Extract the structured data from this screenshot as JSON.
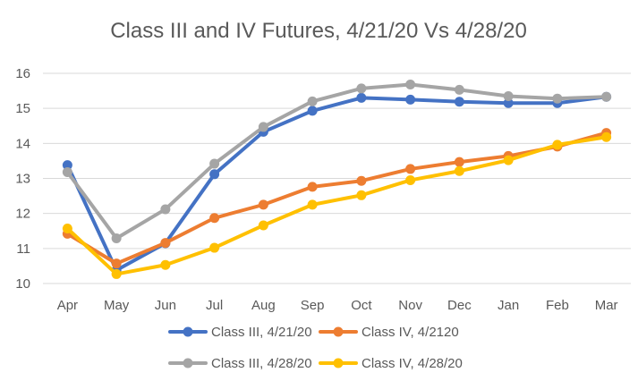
{
  "chart_data": {
    "type": "line",
    "title": "Class III and IV Futures, 4/21/20 Vs 4/28/20",
    "xlabel": "",
    "ylabel": "",
    "categories": [
      "Apr",
      "May",
      "Jun",
      "Jul",
      "Aug",
      "Sep",
      "Oct",
      "Nov",
      "Dec",
      "Jan",
      "Feb",
      "Mar"
    ],
    "ylim": [
      10,
      16
    ],
    "yticks": [
      "10",
      "11",
      "12",
      "13",
      "14",
      "15",
      "16"
    ],
    "grid": true,
    "legend_position": "bottom",
    "series": [
      {
        "name": "Class III, 4/21/20",
        "color": "#4472c4",
        "values": [
          13.38,
          10.38,
          11.15,
          13.12,
          14.33,
          14.93,
          15.3,
          15.25,
          15.19,
          15.15,
          15.15,
          15.33
        ]
      },
      {
        "name": "Class IV, 4/2120",
        "color": "#ed7d31",
        "values": [
          11.42,
          10.57,
          11.16,
          11.87,
          12.25,
          12.76,
          12.93,
          13.27,
          13.47,
          13.64,
          13.91,
          14.3
        ]
      },
      {
        "name": "Class III, 4/28/20",
        "color": "#a5a5a5",
        "values": [
          13.18,
          11.29,
          12.12,
          13.42,
          14.47,
          15.2,
          15.57,
          15.68,
          15.53,
          15.35,
          15.28,
          15.33
        ]
      },
      {
        "name": "Class IV, 4/28/20",
        "color": "#ffc000",
        "values": [
          11.57,
          10.27,
          10.53,
          11.02,
          11.66,
          12.25,
          12.52,
          12.95,
          13.21,
          13.52,
          13.96,
          14.18
        ]
      }
    ]
  }
}
